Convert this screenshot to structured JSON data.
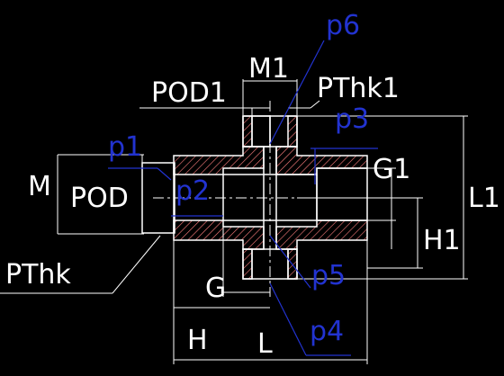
{
  "labels": {
    "p6": "p6",
    "M1": "M1",
    "POD1": "POD1",
    "PThk1": "PThk1",
    "p3": "p3",
    "p1": "p1",
    "G1": "G1",
    "M": "M",
    "POD": "POD",
    "p2": "p2",
    "L1": "L1",
    "H1": "H1",
    "PThk": "PThk",
    "G": "G",
    "p5": "p5",
    "H": "H",
    "L": "L",
    "p4": "p4"
  },
  "colors": {
    "background": "#000000",
    "outline": "#ffffff",
    "hatch": "#ff7f7f",
    "point_label": "#2233d0",
    "point_leader": "#2233d0"
  }
}
